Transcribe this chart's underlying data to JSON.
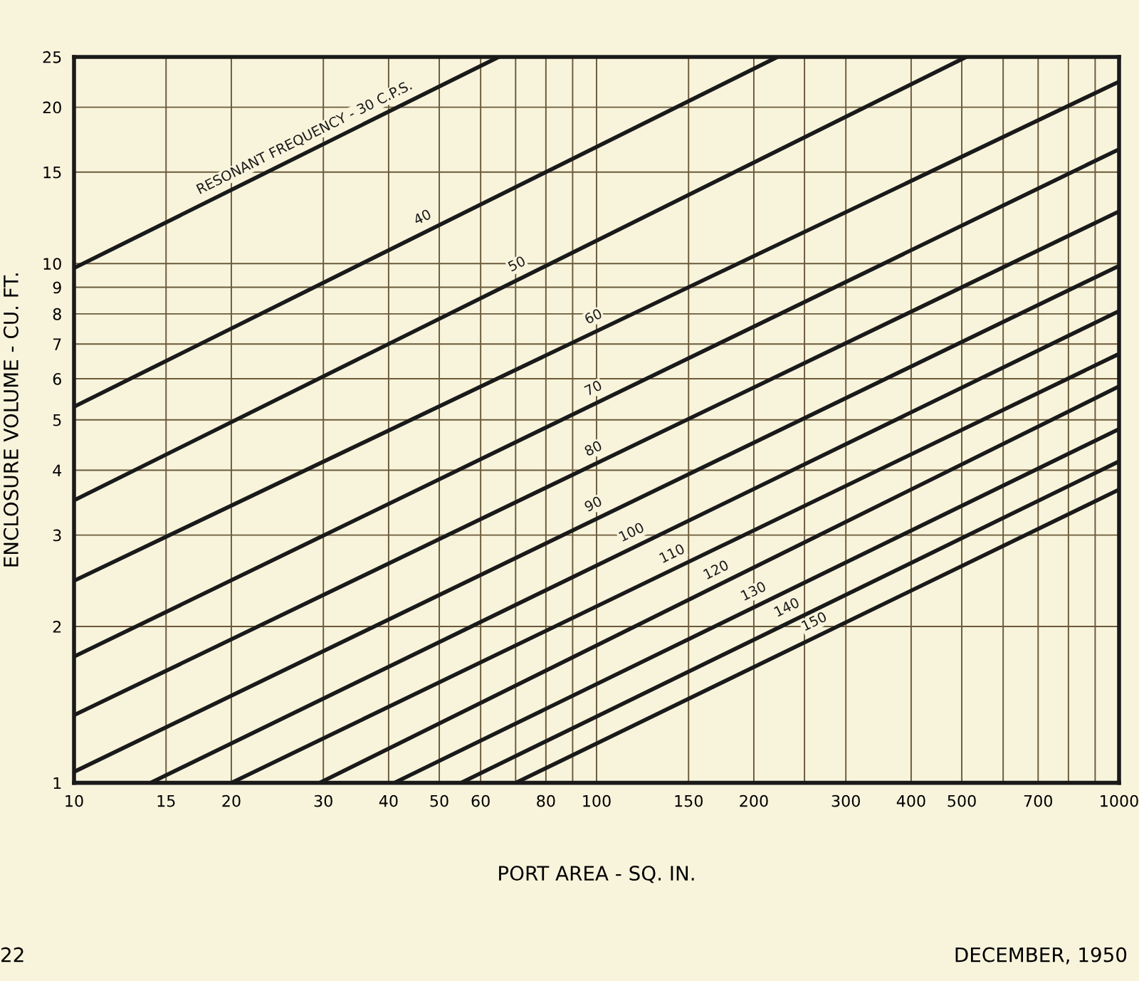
{
  "chart_data": {
    "type": "line",
    "xlabel": "PORT AREA - SQ. IN.",
    "ylabel": "ENCLOSURE VOLUME - CU. FT.",
    "log": "xy",
    "grid": true,
    "marker": "none",
    "line_style": "solid",
    "xlim": [
      10,
      1000
    ],
    "ylim": [
      1,
      25
    ],
    "xticks": [
      10,
      15,
      20,
      30,
      40,
      50,
      60,
      {
        "value": 70,
        "label": null
      },
      80,
      {
        "value": 90,
        "label": null
      },
      100,
      150,
      200,
      {
        "value": 250,
        "label": null
      },
      300,
      400,
      500,
      {
        "value": 600,
        "label": null
      },
      700,
      {
        "value": 800,
        "label": null
      },
      {
        "value": 900,
        "label": null
      },
      1000
    ],
    "yticks": [
      1,
      2,
      3,
      4,
      5,
      6,
      7,
      8,
      9,
      10,
      15,
      20,
      25
    ],
    "series": [
      {
        "name": "RESONANT FREQUENCY - 30 C.P.S.",
        "color": "#1a1a1a",
        "x": [
          10,
          65
        ],
        "values": [
          9.8,
          25
        ]
      },
      {
        "name": "40",
        "color": "#1a1a1a",
        "x": [
          10,
          222
        ],
        "values": [
          5.3,
          25
        ]
      },
      {
        "name": "50",
        "color": "#1a1a1a",
        "x": [
          10,
          510
        ],
        "values": [
          3.5,
          25
        ]
      },
      {
        "name": "60",
        "color": "#1a1a1a",
        "x": [
          10,
          1000
        ],
        "values": [
          2.45,
          22.4
        ]
      },
      {
        "name": "70",
        "color": "#1a1a1a",
        "x": [
          10,
          1000
        ],
        "values": [
          1.75,
          16.6
        ]
      },
      {
        "name": "80",
        "color": "#1a1a1a",
        "x": [
          10,
          1000
        ],
        "values": [
          1.35,
          12.6
        ]
      },
      {
        "name": "90",
        "color": "#1a1a1a",
        "x": [
          10,
          1000
        ],
        "values": [
          1.05,
          9.9
        ]
      },
      {
        "name": "100",
        "color": "#1a1a1a",
        "x": [
          14,
          1000
        ],
        "values": [
          1,
          8.1
        ]
      },
      {
        "name": "110",
        "color": "#1a1a1a",
        "x": [
          20,
          1000
        ],
        "values": [
          1,
          6.7
        ]
      },
      {
        "name": "120",
        "color": "#1a1a1a",
        "x": [
          29.5,
          1000
        ],
        "values": [
          1,
          5.8
        ]
      },
      {
        "name": "130",
        "color": "#1a1a1a",
        "x": [
          41,
          1000
        ],
        "values": [
          1,
          4.8
        ]
      },
      {
        "name": "140",
        "color": "#1a1a1a",
        "x": [
          55,
          1000
        ],
        "values": [
          1,
          4.16
        ]
      },
      {
        "name": "150",
        "color": "#1a1a1a",
        "x": [
          70,
          1000
        ],
        "values": [
          1,
          3.67
        ]
      }
    ],
    "annotations": [
      "22",
      "DECEMBER, 1950"
    ]
  }
}
